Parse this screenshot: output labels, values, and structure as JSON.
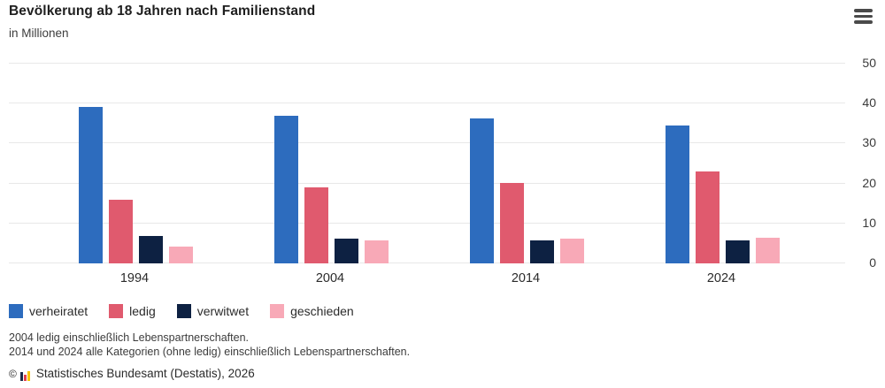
{
  "header": {
    "title": "Bevölkerung ab 18 Jahren nach Familienstand",
    "subtitle": "in Millionen",
    "menu_icon": "hamburger-icon"
  },
  "chart_data": {
    "type": "bar",
    "categories": [
      "1994",
      "2004",
      "2014",
      "2024"
    ],
    "series": [
      {
        "name": "verheiratet",
        "color": "#2d6cbe",
        "values": [
          39.1,
          36.9,
          36.3,
          34.5
        ]
      },
      {
        "name": "ledig",
        "color": "#e05a6e",
        "values": [
          16.0,
          19.1,
          20.1,
          22.9
        ]
      },
      {
        "name": "verwitwet",
        "color": "#0d2142",
        "values": [
          6.8,
          6.3,
          5.8,
          5.8
        ]
      },
      {
        "name": "geschieden",
        "color": "#f8a9b7",
        "values": [
          4.1,
          5.8,
          6.3,
          6.4
        ]
      }
    ],
    "title": "Bevölkerung ab 18 Jahren nach Familienstand",
    "ylabel": "in Millionen",
    "ylim": [
      0,
      50
    ],
    "yticks": [
      0,
      10,
      20,
      30,
      40,
      50
    ],
    "grid": true,
    "axis_side": "right",
    "legend_position": "bottom",
    "gridline_color": "#e8e8e8"
  },
  "footnotes": [
    "2004 ledig einschließlich Lebenspartnerschaften.",
    "2014 und 2024 alle Kategorien (ohne ledig) einschließlich Lebenspartnerschaften."
  ],
  "source": {
    "copyright": "©",
    "label": "Statistisches Bundesamt (Destatis), 2026",
    "logo_colors": [
      "#1a2a4a",
      "#e0414e",
      "#f7c200"
    ]
  }
}
